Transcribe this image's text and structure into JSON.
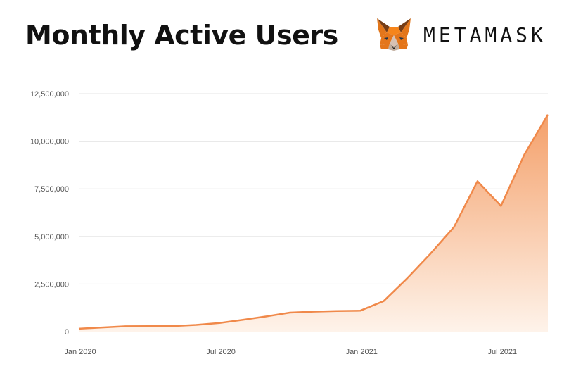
{
  "header": {
    "title": "Monthly Active Users",
    "brand_name": "METAMASK"
  },
  "colors": {
    "line": "#f0894a",
    "fill_top": "#f4a06a",
    "fill_bottom": "#fef3ea",
    "grid": "#e6e6e6",
    "fox_dark": "#763d16",
    "fox_orange": "#e2761b",
    "fox_light": "#f6851b"
  },
  "icons": {
    "logo": "metamask-fox-icon"
  },
  "chart_data": {
    "type": "area",
    "title": "Monthly Active Users",
    "xlabel": "",
    "ylabel": "",
    "ylim": [
      0,
      12500000
    ],
    "yticks": [
      0,
      2500000,
      5000000,
      7500000,
      10000000,
      12500000
    ],
    "ytick_labels": [
      "0",
      "2,500,000",
      "5,000,000",
      "7,500,000",
      "10,000,000",
      "12,500,000"
    ],
    "xticks": [
      0,
      6,
      12,
      18
    ],
    "xtick_labels": [
      "Jan 2020",
      "Jul 2020",
      "Jan 2021",
      "Jul 2021"
    ],
    "xlim": [
      0,
      20
    ],
    "grid": true,
    "series": [
      {
        "name": "Monthly Active Users",
        "x": [
          0,
          1,
          2,
          3,
          4,
          5,
          6,
          7,
          8,
          9,
          10,
          11,
          12,
          13,
          14,
          15,
          16,
          17,
          18,
          19,
          20
        ],
        "values": [
          150000,
          220000,
          280000,
          290000,
          290000,
          350000,
          450000,
          620000,
          800000,
          1000000,
          1050000,
          1080000,
          1100000,
          1600000,
          2800000,
          4100000,
          5500000,
          7900000,
          6600000,
          9300000,
          11400000
        ]
      }
    ]
  }
}
